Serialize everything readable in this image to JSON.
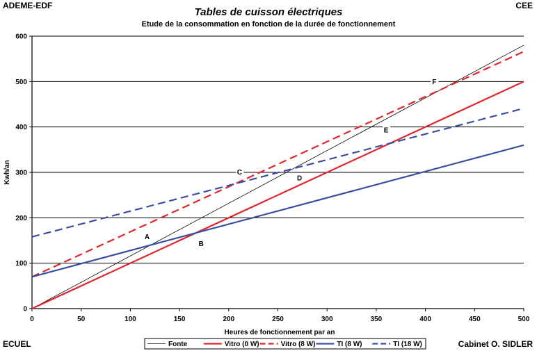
{
  "corners": {
    "top_left": "ADEME-EDF",
    "top_right": "CEE",
    "bottom_left": "ECUEL",
    "bottom_right": "Cabinet O. SIDLER"
  },
  "chart_data": {
    "type": "line",
    "title": "Tables de cuisson électriques",
    "subtitle": "Etude de la consommation en fonction de la durée de fonctionnement",
    "xlabel": "Heures de fonctionnement par an",
    "ylabel": "Kwh/an",
    "xlim": [
      0,
      500
    ],
    "ylim": [
      0,
      600
    ],
    "x_ticks": [
      0,
      50,
      100,
      150,
      200,
      250,
      300,
      350,
      400,
      450,
      500
    ],
    "y_ticks": [
      0,
      100,
      200,
      300,
      400,
      500,
      600
    ],
    "grid": "horizontal",
    "legend_position": "bottom",
    "series": [
      {
        "name": "Fonte",
        "x": [
          0,
          500
        ],
        "values": [
          0,
          580
        ],
        "color": "#000000",
        "style": "solid",
        "width": 0.8
      },
      {
        "name": "Vitro (0 W)",
        "x": [
          0,
          500
        ],
        "values": [
          0,
          500
        ],
        "color": "#e0262b",
        "style": "solid",
        "width": 2.2
      },
      {
        "name": "Vitro (8 W)",
        "x": [
          0,
          500
        ],
        "values": [
          70,
          566
        ],
        "color": "#e0262b",
        "style": "dashed",
        "width": 2.2
      },
      {
        "name": "TI (8 W)",
        "x": [
          0,
          500
        ],
        "values": [
          70,
          360
        ],
        "color": "#3a4fa0",
        "style": "solid",
        "width": 2.2
      },
      {
        "name": "TI (18 W)",
        "x": [
          0,
          500
        ],
        "values": [
          158,
          441
        ],
        "color": "#3a4fa0",
        "style": "dashed",
        "width": 2.2
      }
    ],
    "annotations": [
      {
        "label": "A",
        "x": 117,
        "y": 155
      },
      {
        "label": "B",
        "x": 172,
        "y": 140
      },
      {
        "label": "C",
        "x": 211,
        "y": 298
      },
      {
        "label": "D",
        "x": 272,
        "y": 285
      },
      {
        "label": "E",
        "x": 360,
        "y": 390
      },
      {
        "label": "F",
        "x": 409,
        "y": 497
      }
    ]
  }
}
